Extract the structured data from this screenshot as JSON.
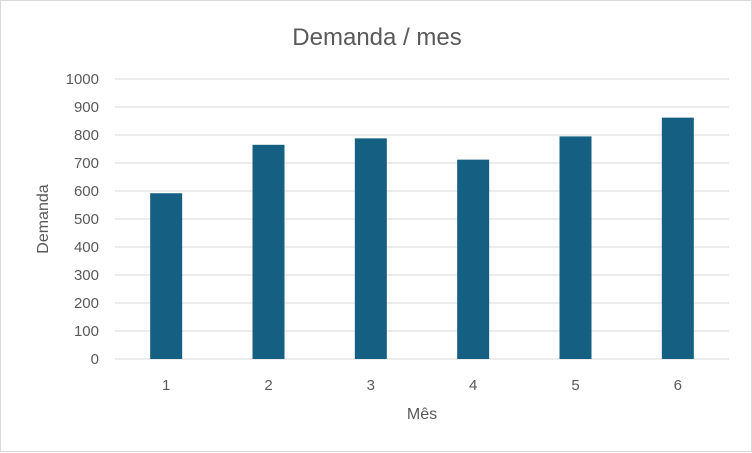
{
  "chart_data": {
    "type": "bar",
    "title": "Demanda / mes",
    "xlabel": "Mês",
    "ylabel": "Demanda",
    "categories": [
      "1",
      "2",
      "3",
      "4",
      "5",
      "6"
    ],
    "values": [
      592,
      765,
      788,
      712,
      795,
      862
    ],
    "ylim": [
      0,
      1000
    ],
    "yticks": [
      0,
      100,
      200,
      300,
      400,
      500,
      600,
      700,
      800,
      900,
      1000
    ],
    "grid": true,
    "legend": "none",
    "bar_color": "#156082"
  }
}
